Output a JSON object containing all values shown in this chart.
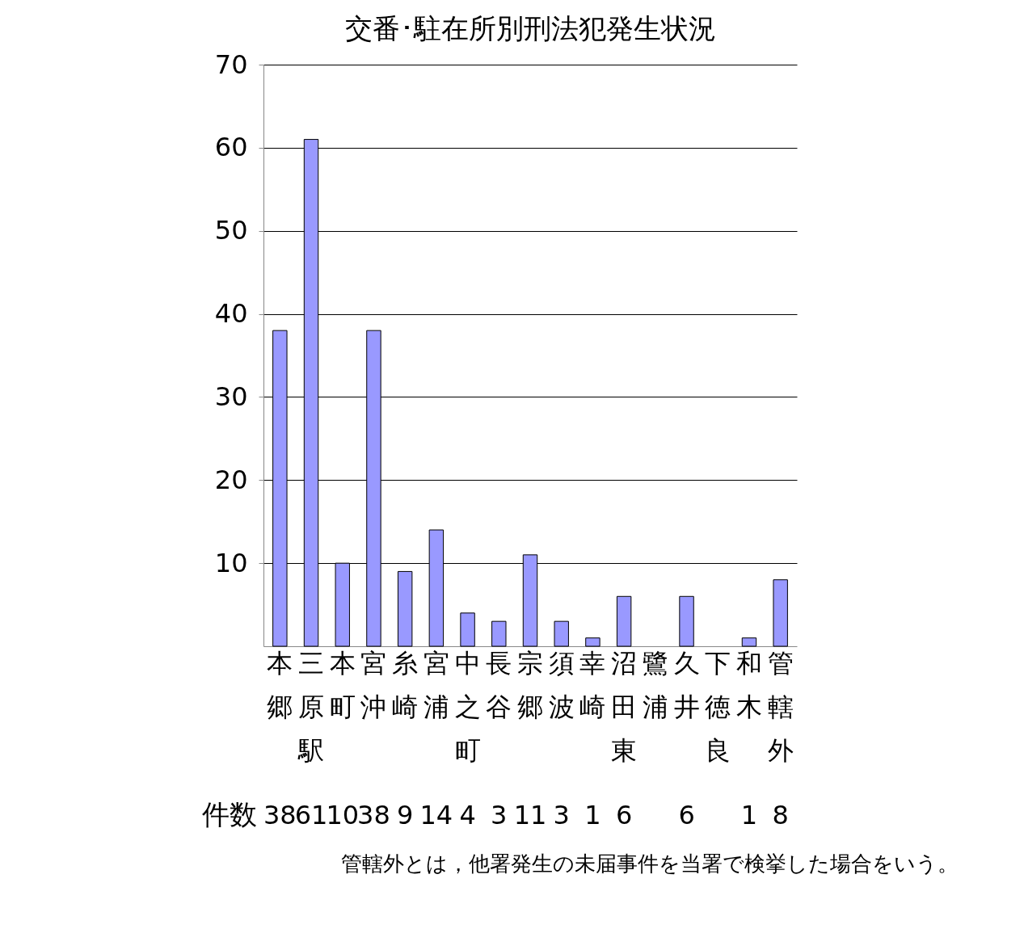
{
  "chart_data": {
    "type": "bar",
    "title": "交番･駐在所別刑法犯発生状況",
    "categories": [
      "本郷",
      "三原駅",
      "本町",
      "宮沖",
      "糸崎",
      "宮浦",
      "中之町",
      "長谷",
      "宗郷",
      "須波",
      "幸崎",
      "沼田東",
      "鷺浦",
      "久井",
      "下徳良",
      "和木",
      "管轄外"
    ],
    "values": [
      38,
      61,
      10,
      38,
      9,
      14,
      4,
      3,
      11,
      3,
      1,
      6,
      null,
      6,
      null,
      1,
      8
    ],
    "color": "#9999ff",
    "ylim": [
      0,
      70
    ],
    "yticks": [
      10,
      20,
      30,
      40,
      50,
      60,
      70
    ],
    "grid": "y",
    "data_labels": true,
    "annotations": [
      "件数",
      "管轄外とは，他署発生の未届事件を当署で検挙した場合をいう。"
    ]
  }
}
